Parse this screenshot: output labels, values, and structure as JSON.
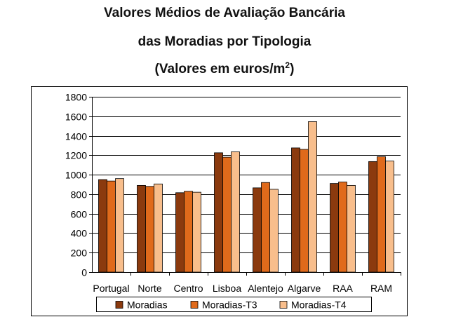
{
  "chart_data": {
    "type": "bar",
    "title_lines": [
      "Valores Médios de Avaliação Bancária",
      "das Moradias por Tipologia"
    ],
    "subtitle_prefix": "(Valores em euros/m",
    "subtitle_sup": "2",
    "subtitle_suffix": ")",
    "xlabel": "",
    "ylabel": "",
    "ylim": [
      0,
      1800
    ],
    "yticks": [
      0,
      200,
      400,
      600,
      800,
      1000,
      1200,
      1400,
      1600,
      1800
    ],
    "grid": true,
    "legend_position": "bottom",
    "categories": [
      "Portugal",
      "Norte",
      "Centro",
      "Lisboa",
      "Alentejo",
      "Algarve",
      "RAA",
      "RAM"
    ],
    "series": [
      {
        "name": "Moradias",
        "color": "#8B3A0E",
        "values": [
          950,
          890,
          815,
          1225,
          865,
          1275,
          910,
          1135
        ]
      },
      {
        "name": "Moradias-T3",
        "color": "#E06A1B",
        "values": [
          935,
          880,
          830,
          1180,
          920,
          1260,
          925,
          1185
        ]
      },
      {
        "name": "Moradias-T4",
        "color": "#F8BE8C",
        "values": [
          960,
          905,
          820,
          1235,
          850,
          1545,
          890,
          1140
        ]
      }
    ]
  }
}
